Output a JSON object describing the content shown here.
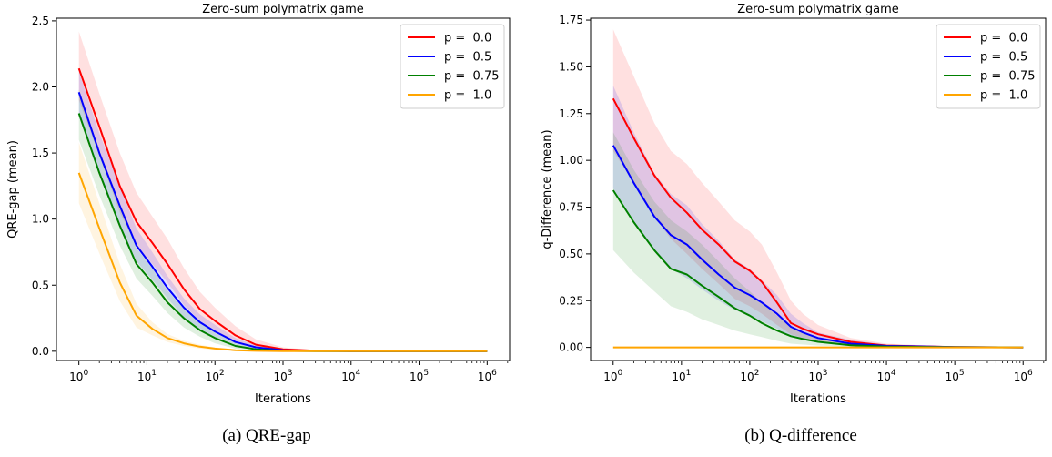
{
  "chart_data": [
    {
      "type": "line",
      "title": "Zero-sum polymatrix game",
      "xlabel": "Iterations",
      "ylabel": "QRE-gap (mean)",
      "xscale": "log",
      "xlim": [
        1,
        1000000
      ],
      "ylim": [
        -0.07,
        2.52
      ],
      "xticks": [
        1,
        10,
        100,
        1000,
        10000,
        100000,
        1000000
      ],
      "xtick_labels": [
        {
          "base": "10",
          "exp": "0"
        },
        {
          "base": "10",
          "exp": "1"
        },
        {
          "base": "10",
          "exp": "2"
        },
        {
          "base": "10",
          "exp": "3"
        },
        {
          "base": "10",
          "exp": "4"
        },
        {
          "base": "10",
          "exp": "5"
        },
        {
          "base": "10",
          "exp": "6"
        }
      ],
      "yticks": [
        0.0,
        0.5,
        1.0,
        1.5,
        2.0,
        2.5
      ],
      "ytick_labels": [
        "0.0",
        "0.5",
        "1.0",
        "1.5",
        "2.0",
        "2.5"
      ],
      "legend_position": "top-right",
      "x": [
        1,
        2,
        4,
        7,
        12,
        20,
        35,
        60,
        100,
        200,
        400,
        1000,
        3000,
        10000,
        100000,
        1000000
      ],
      "series": [
        {
          "name": "p =  0.0",
          "color": "#ff0000",
          "values": [
            2.14,
            1.7,
            1.25,
            0.98,
            0.82,
            0.66,
            0.47,
            0.32,
            0.23,
            0.12,
            0.05,
            0.015,
            0.004,
            0.001,
            0.0,
            0.0
          ],
          "lower": [
            1.9,
            1.48,
            1.05,
            0.8,
            0.66,
            0.52,
            0.35,
            0.23,
            0.16,
            0.07,
            0.03,
            0.007,
            0.001,
            0.0,
            0.0,
            0.0
          ],
          "upper": [
            2.42,
            1.95,
            1.5,
            1.2,
            1.02,
            0.85,
            0.63,
            0.45,
            0.33,
            0.19,
            0.09,
            0.03,
            0.008,
            0.002,
            0.0,
            0.0
          ]
        },
        {
          "name": "p =  0.5",
          "color": "#0000ff",
          "values": [
            1.96,
            1.5,
            1.1,
            0.8,
            0.64,
            0.48,
            0.33,
            0.22,
            0.15,
            0.07,
            0.03,
            0.007,
            0.002,
            0.0,
            0.0,
            0.0
          ],
          "lower": [
            1.78,
            1.35,
            0.96,
            0.68,
            0.54,
            0.4,
            0.26,
            0.17,
            0.11,
            0.05,
            0.02,
            0.004,
            0.001,
            0.0,
            0.0,
            0.0
          ],
          "upper": [
            2.12,
            1.65,
            1.25,
            0.93,
            0.75,
            0.57,
            0.4,
            0.28,
            0.2,
            0.1,
            0.045,
            0.012,
            0.003,
            0.0,
            0.0,
            0.0
          ]
        },
        {
          "name": "p =  0.75",
          "color": "#008000",
          "values": [
            1.8,
            1.35,
            0.95,
            0.66,
            0.52,
            0.37,
            0.25,
            0.16,
            0.1,
            0.04,
            0.015,
            0.003,
            0.001,
            0.0,
            0.0,
            0.0
          ],
          "lower": [
            1.6,
            1.18,
            0.8,
            0.55,
            0.42,
            0.29,
            0.18,
            0.11,
            0.06,
            0.02,
            0.007,
            0.001,
            0.0,
            0.0,
            0.0,
            0.0
          ],
          "upper": [
            1.98,
            1.52,
            1.1,
            0.78,
            0.63,
            0.46,
            0.32,
            0.22,
            0.14,
            0.065,
            0.025,
            0.006,
            0.002,
            0.0,
            0.0,
            0.0
          ]
        },
        {
          "name": "p =  1.0",
          "color": "#ffa500",
          "values": [
            1.35,
            0.93,
            0.52,
            0.27,
            0.17,
            0.1,
            0.06,
            0.035,
            0.02,
            0.008,
            0.003,
            0.001,
            0.0,
            0.0,
            0.0,
            0.0
          ],
          "lower": [
            1.12,
            0.74,
            0.38,
            0.18,
            0.12,
            0.07,
            0.04,
            0.02,
            0.01,
            0.004,
            0.001,
            0.0,
            0.0,
            0.0,
            0.0,
            0.0
          ],
          "upper": [
            1.58,
            1.12,
            0.66,
            0.36,
            0.22,
            0.13,
            0.08,
            0.05,
            0.03,
            0.013,
            0.005,
            0.002,
            0.0,
            0.0,
            0.0,
            0.0
          ]
        }
      ]
    },
    {
      "type": "line",
      "title": "Zero-sum polymatrix game",
      "xlabel": "Iterations",
      "ylabel": "q-Difference (mean)",
      "xscale": "log",
      "xlim": [
        1,
        1000000
      ],
      "ylim": [
        -0.07,
        1.76
      ],
      "xticks": [
        1,
        10,
        100,
        1000,
        10000,
        100000,
        1000000
      ],
      "xtick_labels": [
        {
          "base": "10",
          "exp": "0"
        },
        {
          "base": "10",
          "exp": "1"
        },
        {
          "base": "10",
          "exp": "2"
        },
        {
          "base": "10",
          "exp": "3"
        },
        {
          "base": "10",
          "exp": "4"
        },
        {
          "base": "10",
          "exp": "5"
        },
        {
          "base": "10",
          "exp": "6"
        }
      ],
      "yticks": [
        0.0,
        0.25,
        0.5,
        0.75,
        1.0,
        1.25,
        1.5,
        1.75
      ],
      "ytick_labels": [
        "0.00",
        "0.25",
        "0.50",
        "0.75",
        "1.00",
        "1.25",
        "1.50",
        "1.75"
      ],
      "legend_position": "top-right",
      "x": [
        1,
        2,
        4,
        7,
        12,
        20,
        35,
        60,
        100,
        150,
        250,
        400,
        600,
        1000,
        3000,
        10000,
        100000,
        1000000
      ],
      "series": [
        {
          "name": "p =  0.0",
          "color": "#ff0000",
          "values": [
            1.33,
            1.12,
            0.92,
            0.8,
            0.72,
            0.63,
            0.55,
            0.46,
            0.41,
            0.35,
            0.24,
            0.13,
            0.1,
            0.07,
            0.03,
            0.01,
            0.002,
            0.0
          ],
          "lower": [
            1.05,
            0.88,
            0.7,
            0.58,
            0.5,
            0.42,
            0.34,
            0.26,
            0.22,
            0.18,
            0.12,
            0.07,
            0.05,
            0.03,
            0.01,
            0.003,
            0.0,
            0.0
          ],
          "upper": [
            1.7,
            1.45,
            1.2,
            1.05,
            0.98,
            0.88,
            0.78,
            0.68,
            0.62,
            0.55,
            0.4,
            0.25,
            0.18,
            0.12,
            0.05,
            0.02,
            0.004,
            0.0
          ]
        },
        {
          "name": "p =  0.5",
          "color": "#0000ff",
          "values": [
            1.08,
            0.88,
            0.7,
            0.6,
            0.55,
            0.47,
            0.39,
            0.32,
            0.28,
            0.24,
            0.18,
            0.11,
            0.08,
            0.05,
            0.02,
            0.008,
            0.002,
            0.0
          ],
          "lower": [
            0.85,
            0.68,
            0.52,
            0.42,
            0.37,
            0.31,
            0.25,
            0.2,
            0.17,
            0.14,
            0.1,
            0.06,
            0.04,
            0.025,
            0.01,
            0.003,
            0.0,
            0.0
          ],
          "upper": [
            1.4,
            1.15,
            0.93,
            0.82,
            0.76,
            0.66,
            0.57,
            0.47,
            0.42,
            0.36,
            0.28,
            0.18,
            0.13,
            0.08,
            0.04,
            0.015,
            0.003,
            0.0
          ]
        },
        {
          "name": "p =  0.75",
          "color": "#008000",
          "values": [
            0.84,
            0.67,
            0.52,
            0.42,
            0.39,
            0.33,
            0.27,
            0.21,
            0.17,
            0.13,
            0.09,
            0.06,
            0.045,
            0.03,
            0.012,
            0.004,
            0.001,
            0.0
          ],
          "lower": [
            0.52,
            0.4,
            0.3,
            0.22,
            0.19,
            0.15,
            0.12,
            0.09,
            0.07,
            0.055,
            0.035,
            0.02,
            0.015,
            0.01,
            0.004,
            0.001,
            0.0,
            0.0
          ],
          "upper": [
            1.15,
            0.95,
            0.78,
            0.68,
            0.62,
            0.55,
            0.46,
            0.37,
            0.3,
            0.24,
            0.17,
            0.11,
            0.08,
            0.05,
            0.02,
            0.007,
            0.002,
            0.0
          ]
        },
        {
          "name": "p =  1.0",
          "color": "#ffa500",
          "values": [
            0.0,
            0.0,
            0.0,
            0.0,
            0.0,
            0.0,
            0.0,
            0.0,
            0.0,
            0.0,
            0.0,
            0.0,
            0.0,
            0.0,
            0.0,
            0.0,
            0.0,
            0.0
          ],
          "lower": [
            0.0,
            0.0,
            0.0,
            0.0,
            0.0,
            0.0,
            0.0,
            0.0,
            0.0,
            0.0,
            0.0,
            0.0,
            0.0,
            0.0,
            0.0,
            0.0,
            0.0,
            0.0
          ],
          "upper": [
            0.0,
            0.0,
            0.0,
            0.0,
            0.0,
            0.0,
            0.0,
            0.0,
            0.0,
            0.0,
            0.0,
            0.0,
            0.0,
            0.0,
            0.0,
            0.0,
            0.0,
            0.0
          ]
        }
      ]
    }
  ],
  "captions": [
    "(a) QRE-gap",
    "(b) Q-difference"
  ]
}
